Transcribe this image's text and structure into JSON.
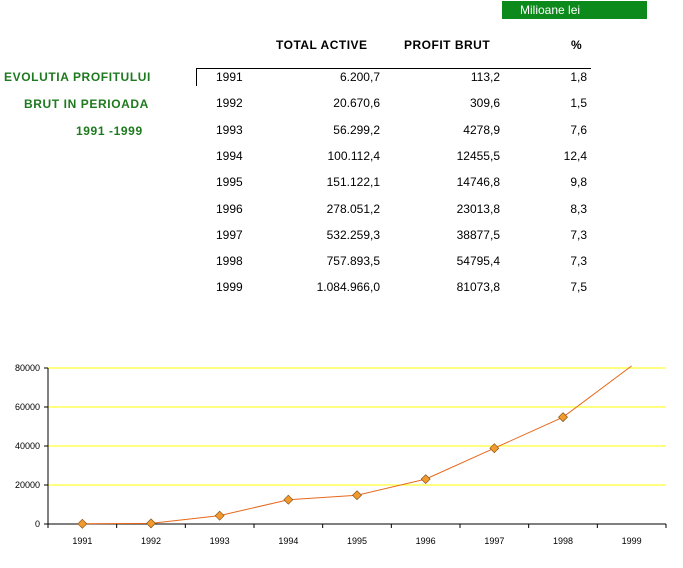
{
  "unit_label": "Milioane lei",
  "side_title": [
    "EVOLUTIA PROFITULUI",
    "BRUT IN PERIOADA",
    "1991 -1999"
  ],
  "columns": {
    "total": "TOTAL ACTIVE",
    "profit": "PROFIT BRUT",
    "pct": "%"
  },
  "rows": [
    {
      "year": "1991",
      "total": "6.200,7",
      "profit": "113,2",
      "pct": "1,8"
    },
    {
      "year": "1992",
      "total": "20.670,6",
      "profit": "309,6",
      "pct": "1,5"
    },
    {
      "year": "1993",
      "total": "56.299,2",
      "profit": "4278,9",
      "pct": "7,6"
    },
    {
      "year": "1994",
      "total": "100.112,4",
      "profit": "12455,5",
      "pct": "12,4"
    },
    {
      "year": "1995",
      "total": "151.122,1",
      "profit": "14746,8",
      "pct": "9,8"
    },
    {
      "year": "1996",
      "total": "278.051,2",
      "profit": "23013,8",
      "pct": "8,3"
    },
    {
      "year": "1997",
      "total": "532.259,3",
      "profit": "38877,5",
      "pct": "7,3"
    },
    {
      "year": "1998",
      "total": "757.893,5",
      "profit": "54795,4",
      "pct": "7,3"
    },
    {
      "year": "1999",
      "total": "1.084.966,0",
      "profit": "81073,8",
      "pct": "7,5"
    }
  ],
  "chart_data": {
    "type": "line",
    "categories": [
      "1991",
      "1992",
      "1993",
      "1994",
      "1995",
      "1996",
      "1997",
      "1998",
      "1999"
    ],
    "series": [
      {
        "values": [
          113.2,
          309.6,
          4278.9,
          12455.5,
          14746.8,
          23013.8,
          38877.5,
          54795.4,
          81073.8
        ]
      }
    ],
    "ylim": [
      0,
      80000
    ],
    "yticks": [
      0,
      20000,
      40000,
      60000,
      80000
    ],
    "grid": true,
    "colors": {
      "line": "#e8681c",
      "marker": "#f29a2e",
      "grid": "#ffff00"
    }
  }
}
